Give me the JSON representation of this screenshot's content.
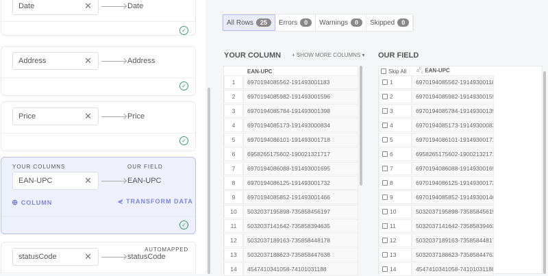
{
  "mapping": {
    "cards": [
      {
        "column": "Date",
        "field": "Date"
      },
      {
        "column": "Address",
        "field": "Address"
      },
      {
        "column": "Price",
        "field": "Price"
      },
      {
        "column": "EAN-UPC",
        "field": "EAN-UPC",
        "your_columns_label": "YOUR COLUMNS",
        "our_field_label": "OUR FIELD",
        "add_column_label": "COLUMN",
        "transform_label": "TRANSFORM DATA"
      },
      {
        "column": "statusCode",
        "field": "statusCode",
        "badge": "AUTOMAPPED"
      }
    ]
  },
  "filters": [
    {
      "label": "All Rows",
      "count": "25"
    },
    {
      "label": "Errors",
      "count": "0"
    },
    {
      "label": "Warnings",
      "count": "0"
    },
    {
      "label": "Skipped",
      "count": "0"
    }
  ],
  "your_column": {
    "title": "YOUR COLUMN",
    "show_more": "+ SHOW MORE COLUMNS",
    "header": "EAN-UPC"
  },
  "our_field": {
    "title": "OUR FIELD",
    "skip_all": "Skip All",
    "type_icon": "ab-c",
    "header": "EAN-UPC"
  },
  "rows": [
    {
      "n": "1",
      "v": "6970194085562-191493001183"
    },
    {
      "n": "2",
      "v": "6970194085982-191493001596"
    },
    {
      "n": "3",
      "v": "6970194085784-191493001398"
    },
    {
      "n": "4",
      "v": "6970194085173-191493000834"
    },
    {
      "n": "5",
      "v": "6970194086101-191493001718"
    },
    {
      "n": "6",
      "v": "6958265175602-190021321717"
    },
    {
      "n": "7",
      "v": "6970194086088-191493001695"
    },
    {
      "n": "8",
      "v": "6970194086125-191493001732"
    },
    {
      "n": "9",
      "v": "6970194085852-191493001466"
    },
    {
      "n": "10",
      "v": "5032037195898-735858456197"
    },
    {
      "n": "11",
      "v": "5032037141642-735858394635"
    },
    {
      "n": "12",
      "v": "5032037189163-735858448178"
    },
    {
      "n": "13",
      "v": "5032037188623-735858447638"
    },
    {
      "n": "14",
      "v": "4547410341058-74101031188"
    }
  ],
  "colors": {
    "accent": "#7b83e0",
    "success": "#3a9a6a",
    "active_card": "#eef0fb"
  }
}
